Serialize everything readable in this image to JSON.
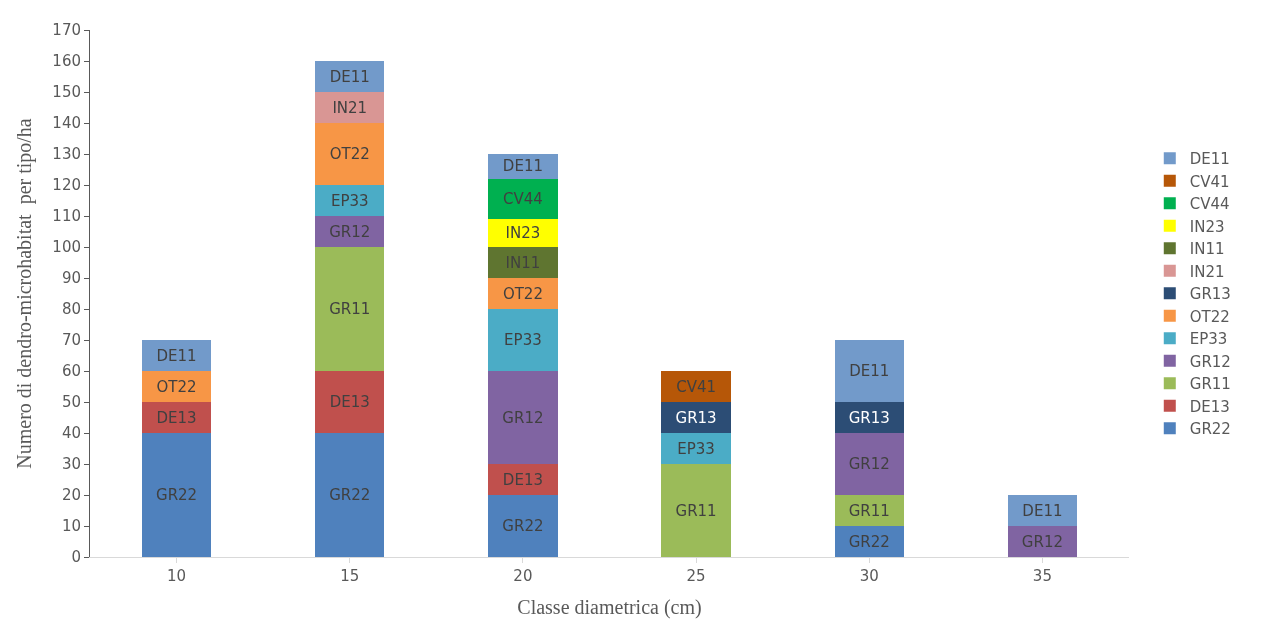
{
  "chart_data": {
    "type": "bar",
    "stacked": true,
    "xlabel": "Classe diametrica (cm)",
    "ylabel": "Numero di dendro-microhabitat  per tipo/ha",
    "categories": [
      "10",
      "15",
      "20",
      "25",
      "30",
      "35"
    ],
    "ylim": [
      0,
      170
    ],
    "yticks": [
      0,
      10,
      20,
      30,
      40,
      50,
      60,
      70,
      80,
      90,
      100,
      110,
      120,
      130,
      140,
      150,
      160,
      170
    ],
    "legend": "right",
    "series": [
      {
        "name": "GR22",
        "color": "#4f81bd",
        "values": [
          40,
          40,
          20,
          null,
          10,
          null
        ]
      },
      {
        "name": "DE13",
        "color": "#c0504d",
        "values": [
          10,
          20,
          10,
          null,
          null,
          null
        ]
      },
      {
        "name": "GR11",
        "color": "#9bbb59",
        "values": [
          null,
          40,
          null,
          30,
          10,
          null
        ]
      },
      {
        "name": "GR12",
        "color": "#8064a2",
        "values": [
          null,
          10,
          30,
          null,
          20,
          10
        ]
      },
      {
        "name": "EP33",
        "color": "#4bacc6",
        "values": [
          null,
          10,
          20,
          10,
          null,
          null
        ]
      },
      {
        "name": "OT22",
        "color": "#f79646",
        "values": [
          10,
          20,
          10,
          null,
          null,
          null
        ]
      },
      {
        "name": "GR13",
        "color": "#2c4d75",
        "values": [
          null,
          null,
          null,
          10,
          10,
          null
        ]
      },
      {
        "name": "IN21",
        "color": "#d99694",
        "values": [
          null,
          10,
          null,
          null,
          null,
          null
        ]
      },
      {
        "name": "IN11",
        "color": "#5f7530",
        "values": [
          null,
          null,
          10,
          null,
          null,
          null
        ]
      },
      {
        "name": "IN23",
        "color": "#ffff00",
        "values": [
          null,
          null,
          9,
          null,
          null,
          null
        ]
      },
      {
        "name": "CV44",
        "color": "#00b050",
        "values": [
          null,
          null,
          13,
          null,
          null,
          null
        ]
      },
      {
        "name": "CV41",
        "color": "#b65708",
        "values": [
          null,
          null,
          null,
          10,
          null,
          null
        ]
      },
      {
        "name": "DE11",
        "color": "#729aca",
        "values": [
          10,
          10,
          8,
          null,
          20,
          10
        ]
      }
    ]
  }
}
